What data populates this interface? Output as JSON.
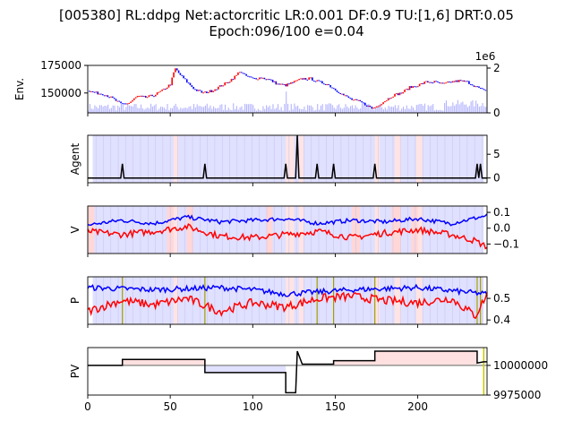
{
  "title_line1": "[005380] RL:ddpg Net:actorcritic LR:0.001 DF:0.9 TU:[1,6] DRT:0.05",
  "title_line2": "Epoch:096/100 e=0.04",
  "chart_data": [
    {
      "type": "line",
      "panel": "env",
      "ylabel": "Env.",
      "xlim": [
        0,
        242
      ],
      "ylim": [
        132000,
        175000
      ],
      "yticks": [
        "150000",
        "175000"
      ],
      "secondary_axis": {
        "ylim": [
          0,
          2000000
        ],
        "yticks": [
          "0",
          "2"
        ],
        "offset_label": "1e6",
        "series": "volume (light blue bars)"
      },
      "price_anchors": [
        [
          0,
          152000
        ],
        [
          5,
          150000
        ],
        [
          10,
          149000
        ],
        [
          15,
          145000
        ],
        [
          20,
          140000
        ],
        [
          25,
          141000
        ],
        [
          30,
          147000
        ],
        [
          35,
          146000
        ],
        [
          40,
          148000
        ],
        [
          45,
          152000
        ],
        [
          50,
          158000
        ],
        [
          52,
          168000
        ],
        [
          53,
          172000
        ],
        [
          55,
          168000
        ],
        [
          60,
          160000
        ],
        [
          65,
          153000
        ],
        [
          70,
          150000
        ],
        [
          75,
          152000
        ],
        [
          80,
          156000
        ],
        [
          85,
          160000
        ],
        [
          90,
          166000
        ],
        [
          92,
          170000
        ],
        [
          95,
          166000
        ],
        [
          100,
          163000
        ],
        [
          105,
          164000
        ],
        [
          110,
          162000
        ],
        [
          115,
          158000
        ],
        [
          120,
          157000
        ],
        [
          125,
          160000
        ],
        [
          130,
          163000
        ],
        [
          135,
          163000
        ],
        [
          140,
          160000
        ],
        [
          145,
          158000
        ],
        [
          150,
          153000
        ],
        [
          155,
          148000
        ],
        [
          160,
          144000
        ],
        [
          165,
          142000
        ],
        [
          170,
          138000
        ],
        [
          172,
          136000
        ],
        [
          175,
          138000
        ],
        [
          180,
          143000
        ],
        [
          185,
          148000
        ],
        [
          190,
          150000
        ],
        [
          195,
          155000
        ],
        [
          200,
          157000
        ],
        [
          205,
          160000
        ],
        [
          210,
          160000
        ],
        [
          215,
          158000
        ],
        [
          220,
          160000
        ],
        [
          225,
          161000
        ],
        [
          230,
          160000
        ],
        [
          235,
          156000
        ],
        [
          240,
          152000
        ],
        [
          242,
          155000
        ]
      ],
      "volume_note": "light blue bars along bottom, spike near x=120"
    },
    {
      "type": "line",
      "panel": "agent",
      "ylabel": "Agent",
      "xlim": [
        0,
        242
      ],
      "ylim": [
        -1,
        9
      ],
      "yticks": [
        "0",
        "5"
      ],
      "spikes": [
        [
          21,
          3
        ],
        [
          71,
          3
        ],
        [
          120,
          3
        ],
        [
          127,
          9
        ],
        [
          139,
          3
        ],
        [
          149,
          3
        ],
        [
          174,
          3
        ],
        [
          236,
          3
        ],
        [
          238,
          3
        ]
      ]
    },
    {
      "type": "line",
      "panel": "value",
      "ylabel": "V",
      "xlim": [
        0,
        242
      ],
      "ylim": [
        -0.16,
        0.14
      ],
      "yticks": [
        "0.1",
        "0.0",
        "−0.1"
      ],
      "series": [
        {
          "color": "#0000ff",
          "anchors": [
            [
              0,
              0.02
            ],
            [
              20,
              0.05
            ],
            [
              40,
              0.03
            ],
            [
              60,
              0.07
            ],
            [
              80,
              0.04
            ],
            [
              100,
              0.05
            ],
            [
              120,
              0.06
            ],
            [
              140,
              0.03
            ],
            [
              160,
              0.05
            ],
            [
              180,
              0.04
            ],
            [
              200,
              0.06
            ],
            [
              220,
              0.03
            ],
            [
              242,
              0.08
            ]
          ]
        },
        {
          "color": "#ff0000",
          "anchors": [
            [
              0,
              -0.02
            ],
            [
              20,
              -0.04
            ],
            [
              40,
              -0.02
            ],
            [
              60,
              0.01
            ],
            [
              80,
              -0.05
            ],
            [
              100,
              -0.06
            ],
            [
              120,
              -0.04
            ],
            [
              140,
              -0.02
            ],
            [
              160,
              -0.06
            ],
            [
              180,
              -0.03
            ],
            [
              200,
              -0.01
            ],
            [
              220,
              -0.04
            ],
            [
              235,
              -0.08
            ],
            [
              242,
              -0.12
            ]
          ]
        }
      ]
    },
    {
      "type": "line",
      "panel": "policy",
      "ylabel": "P",
      "xlim": [
        0,
        242
      ],
      "ylim": [
        0.38,
        0.6
      ],
      "yticks": [
        "0.5",
        "0.4"
      ],
      "series": [
        {
          "color": "#0000ff",
          "anchors": [
            [
              0,
              0.55
            ],
            [
              40,
              0.54
            ],
            [
              80,
              0.55
            ],
            [
              100,
              0.54
            ],
            [
              120,
              0.52
            ],
            [
              140,
              0.53
            ],
            [
              160,
              0.54
            ],
            [
              200,
              0.55
            ],
            [
              242,
              0.52
            ]
          ]
        },
        {
          "color": "#ff0000",
          "anchors": [
            [
              0,
              0.44
            ],
            [
              20,
              0.49
            ],
            [
              40,
              0.47
            ],
            [
              60,
              0.5
            ],
            [
              80,
              0.44
            ],
            [
              100,
              0.48
            ],
            [
              120,
              0.46
            ],
            [
              140,
              0.5
            ],
            [
              160,
              0.51
            ],
            [
              180,
              0.49
            ],
            [
              200,
              0.48
            ],
            [
              220,
              0.5
            ],
            [
              235,
              0.42
            ],
            [
              242,
              0.52
            ]
          ]
        }
      ],
      "markers": [
        21,
        71,
        139,
        149,
        174,
        236,
        238
      ]
    },
    {
      "type": "line",
      "panel": "portfolio",
      "ylabel": "PV",
      "xlim": [
        0,
        242
      ],
      "ylim": [
        9975000,
        10015000
      ],
      "yticks": [
        "10000000",
        "9975000"
      ],
      "xticks": [
        "0",
        "50",
        "100",
        "150",
        "200"
      ],
      "baseline": 10000000,
      "steps": [
        [
          0,
          10000000
        ],
        [
          21,
          10000000
        ],
        [
          21,
          10005000
        ],
        [
          71,
          10005000
        ],
        [
          71,
          9994000
        ],
        [
          120,
          9994000
        ],
        [
          120,
          9977000
        ],
        [
          126,
          9977000
        ],
        [
          127,
          10012000
        ],
        [
          130,
          10001000
        ],
        [
          139,
          10001000
        ],
        [
          149,
          10001000
        ],
        [
          149,
          10004000
        ],
        [
          174,
          10004000
        ],
        [
          174,
          10012000
        ],
        [
          236,
          10012000
        ],
        [
          236,
          10002000
        ],
        [
          240,
          10003000
        ],
        [
          242,
          10003000
        ]
      ]
    }
  ]
}
